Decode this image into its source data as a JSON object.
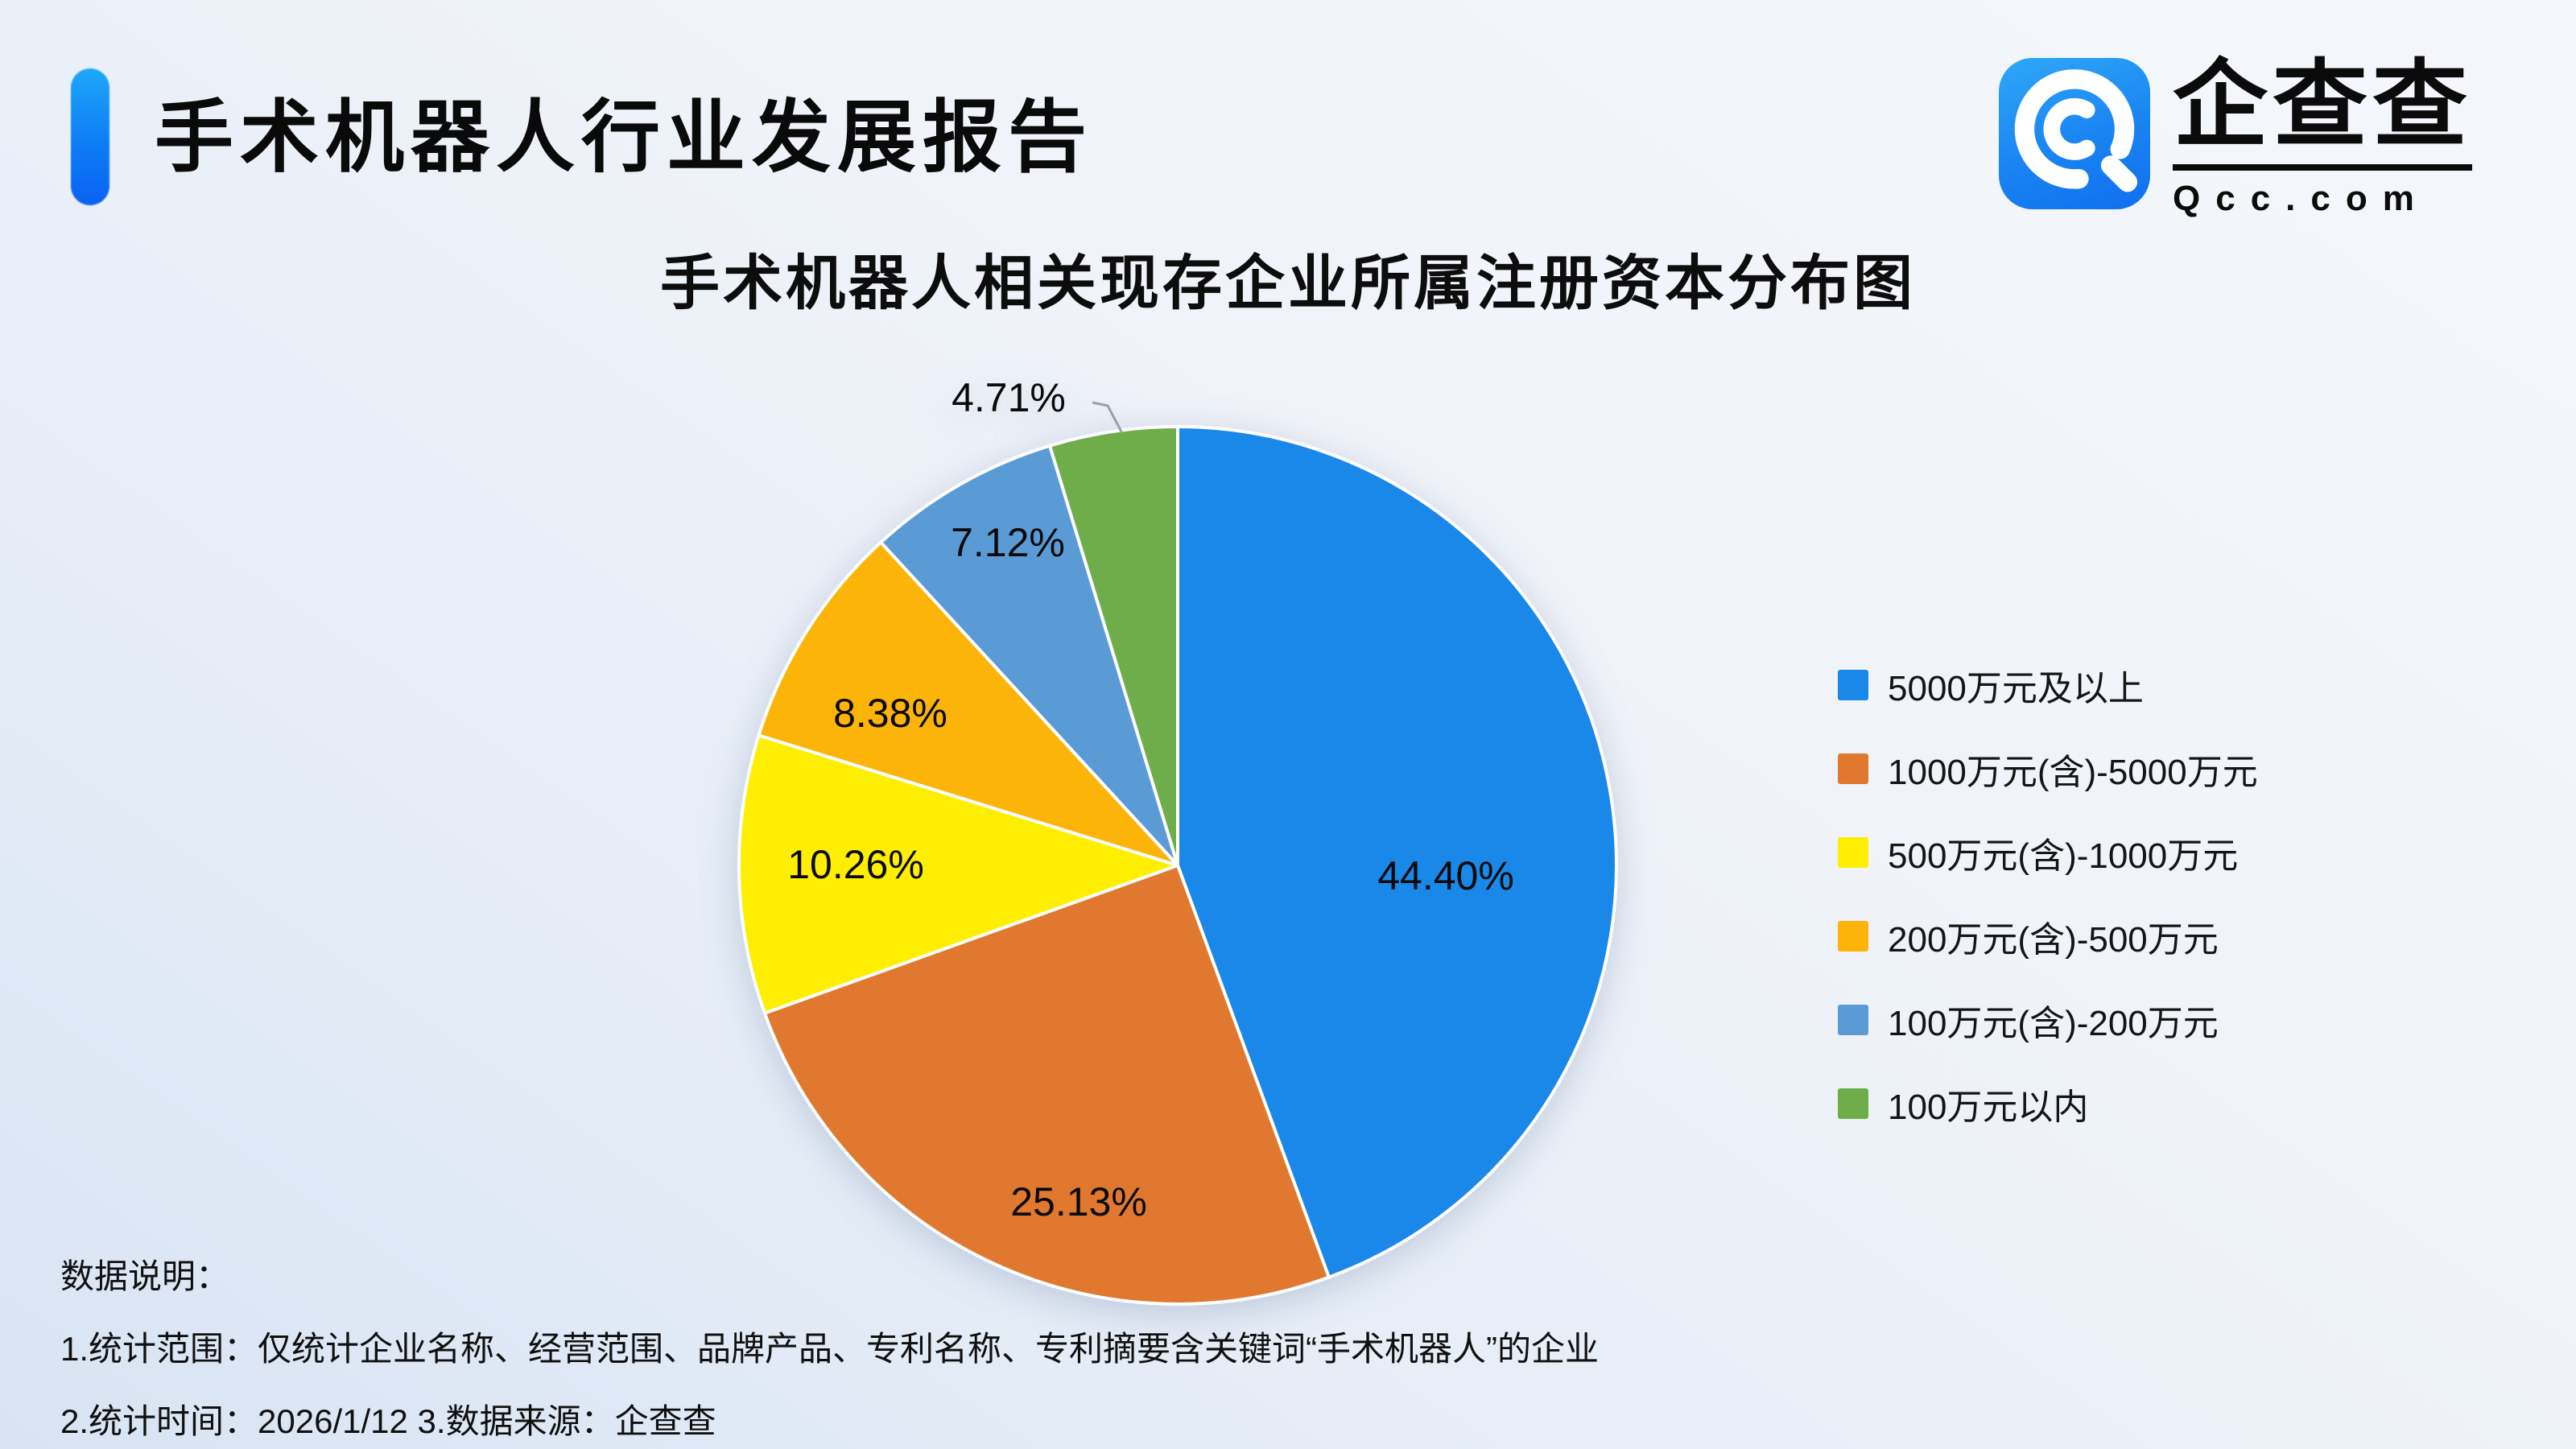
{
  "header": {
    "title": "手术机器人行业发展报告"
  },
  "logo": {
    "name": "企查查",
    "domain": "Qcc.com",
    "icon": "qcc-magnifier-icon"
  },
  "chart_data": {
    "type": "pie",
    "title": "手术机器人相关现存企业所属注册资本分布图",
    "categories": [
      "5000万元及以上",
      "1000万元(含)-5000万元",
      "500万元(含)-1000万元",
      "200万元(含)-500万元",
      "100万元(含)-200万元",
      "100万元以内"
    ],
    "values": [
      44.4,
      25.13,
      10.26,
      8.38,
      7.12,
      4.71
    ],
    "labels": [
      "44.40%",
      "25.13%",
      "10.26%",
      "8.38%",
      "7.12%",
      "4.71%"
    ],
    "colors": [
      "#1a88e8",
      "#e0792f",
      "#fdee02",
      "#fcb408",
      "#5b9bd5",
      "#6fad4a"
    ],
    "start_angle": "12-oclock",
    "direction": "clockwise",
    "legend_position": "right",
    "label_style": "percent-inside-except-smallest-outside"
  },
  "notes": {
    "heading": "数据说明：",
    "line1": "1.统计范围：仅统计企业名称、经营范围、品牌产品、专利名称、专利摘要含关键词“手术机器人”的企业",
    "line2": "2.统计时间：2026/1/12  3.数据来源：企查查"
  }
}
